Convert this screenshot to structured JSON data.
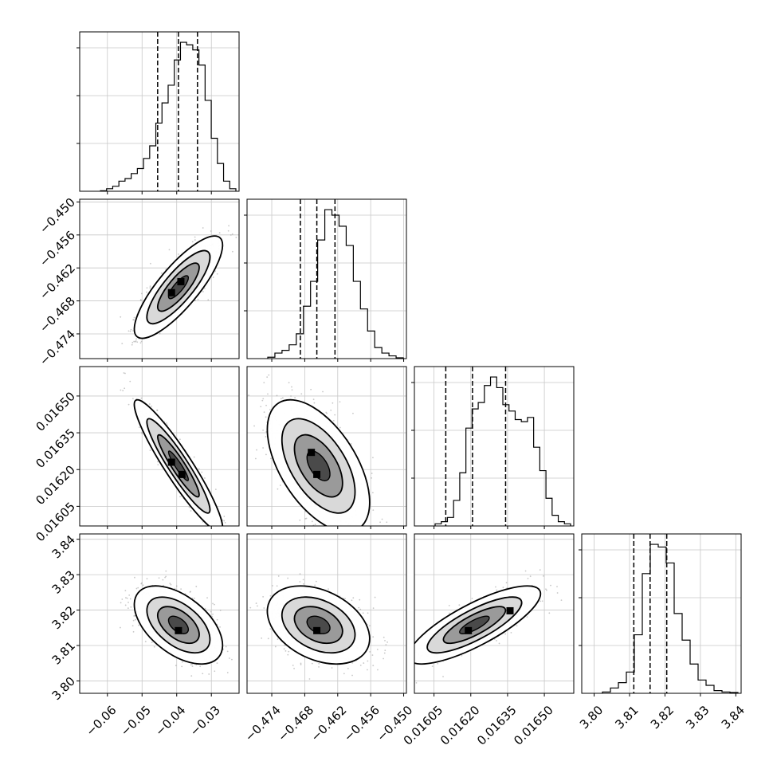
{
  "chart_data": {
    "type": "corner",
    "params": [
      {
        "range": [
          -0.068,
          -0.022
        ],
        "ticks": [
          -0.06,
          -0.05,
          -0.04,
          -0.03
        ],
        "tick_labels": [
          "−0.06",
          "−0.05",
          "−0.04",
          "−0.03"
        ]
      },
      {
        "range": [
          -0.4785,
          -0.4495
        ],
        "ticks": [
          -0.474,
          -0.468,
          -0.462,
          -0.456,
          -0.45
        ],
        "tick_labels": [
          "−0.474",
          "−0.468",
          "−0.462",
          "−0.456",
          "−0.450"
        ]
      },
      {
        "range": [
          0.01597,
          0.01662
        ],
        "ticks": [
          0.01605,
          0.0162,
          0.01635,
          0.0165
        ],
        "tick_labels": [
          "0.01605",
          "0.01620",
          "0.01635",
          "0.01650"
        ]
      },
      {
        "range": [
          3.7965,
          3.8415
        ],
        "ticks": [
          3.8,
          3.81,
          3.82,
          3.83,
          3.84
        ],
        "tick_labels": [
          "3.80",
          "3.81",
          "3.82",
          "3.83",
          "3.84"
        ]
      }
    ],
    "histograms": [
      {
        "counts": [
          0.2,
          1,
          2,
          4,
          5,
          7,
          9,
          13,
          18,
          27,
          35,
          42,
          52,
          59,
          58,
          56,
          50,
          36,
          21,
          11,
          4,
          1
        ],
        "quantiles": [
          -0.0455,
          -0.0395,
          -0.034
        ]
      },
      {
        "counts": [
          0.5,
          2,
          3,
          5,
          9,
          19,
          28,
          43,
          54,
          52,
          48,
          41,
          28,
          18,
          10,
          4,
          2,
          1,
          0.3
        ],
        "quantiles": [
          -0.4688,
          -0.4658,
          -0.4625
        ]
      },
      {
        "counts": [
          1,
          2,
          4,
          12,
          25,
          46,
          55,
          58,
          66,
          70,
          65,
          57,
          54,
          50,
          49,
          51,
          37,
          26,
          13,
          5,
          2,
          1
        ],
        "quantiles": [
          0.016098,
          0.016207,
          0.016342
        ]
      },
      {
        "counts": [
          0.5,
          2,
          4,
          8,
          22,
          45,
          56,
          55,
          49,
          30,
          20,
          11,
          5,
          3,
          1,
          0.5,
          0.3
        ],
        "quantiles": [
          3.8112,
          3.8158,
          3.8205
        ]
      }
    ],
    "pairs": [
      {
        "row": 1,
        "col": 0,
        "mean": [
          -0.0395,
          -0.4655
        ],
        "sd": [
          0.0052,
          0.0038
        ],
        "corr": 0.82,
        "peaks": [
          [
            -0.0388,
            -0.4645
          ],
          [
            -0.0415,
            -0.4665
          ]
        ]
      },
      {
        "row": 2,
        "col": 0,
        "mean": [
          -0.0395,
          0.016215
        ],
        "sd": [
          0.0052,
          0.00011
        ],
        "corr": -0.93,
        "peaks": [
          [
            -0.0415,
            0.01623
          ],
          [
            -0.0385,
            0.01618
          ]
        ]
      },
      {
        "row": 2,
        "col": 1,
        "mean": [
          -0.4655,
          0.016215
        ],
        "sd": [
          0.0038,
          0.00011
        ],
        "corr": -0.55,
        "peaks": [
          [
            -0.4668,
            0.01627
          ],
          [
            -0.4658,
            0.01618
          ]
        ]
      },
      {
        "row": 3,
        "col": 0,
        "mean": [
          -0.0395,
          3.8158
        ],
        "sd": [
          0.0052,
          0.0045
        ],
        "corr": -0.52,
        "peaks": [
          [
            -0.0395,
            3.8142
          ]
        ]
      },
      {
        "row": 3,
        "col": 1,
        "mean": [
          -0.4655,
          3.8158
        ],
        "sd": [
          0.0038,
          0.0045
        ],
        "corr": -0.35,
        "peaks": [
          [
            -0.4658,
            3.8142
          ]
        ]
      },
      {
        "row": 3,
        "col": 2,
        "mean": [
          0.016215,
          3.8158
        ],
        "sd": [
          0.00011,
          0.0045
        ],
        "corr": 0.8,
        "peaks": [
          [
            0.01619,
            3.8142
          ],
          [
            0.01636,
            3.8198
          ]
        ]
      }
    ],
    "grid": true
  }
}
